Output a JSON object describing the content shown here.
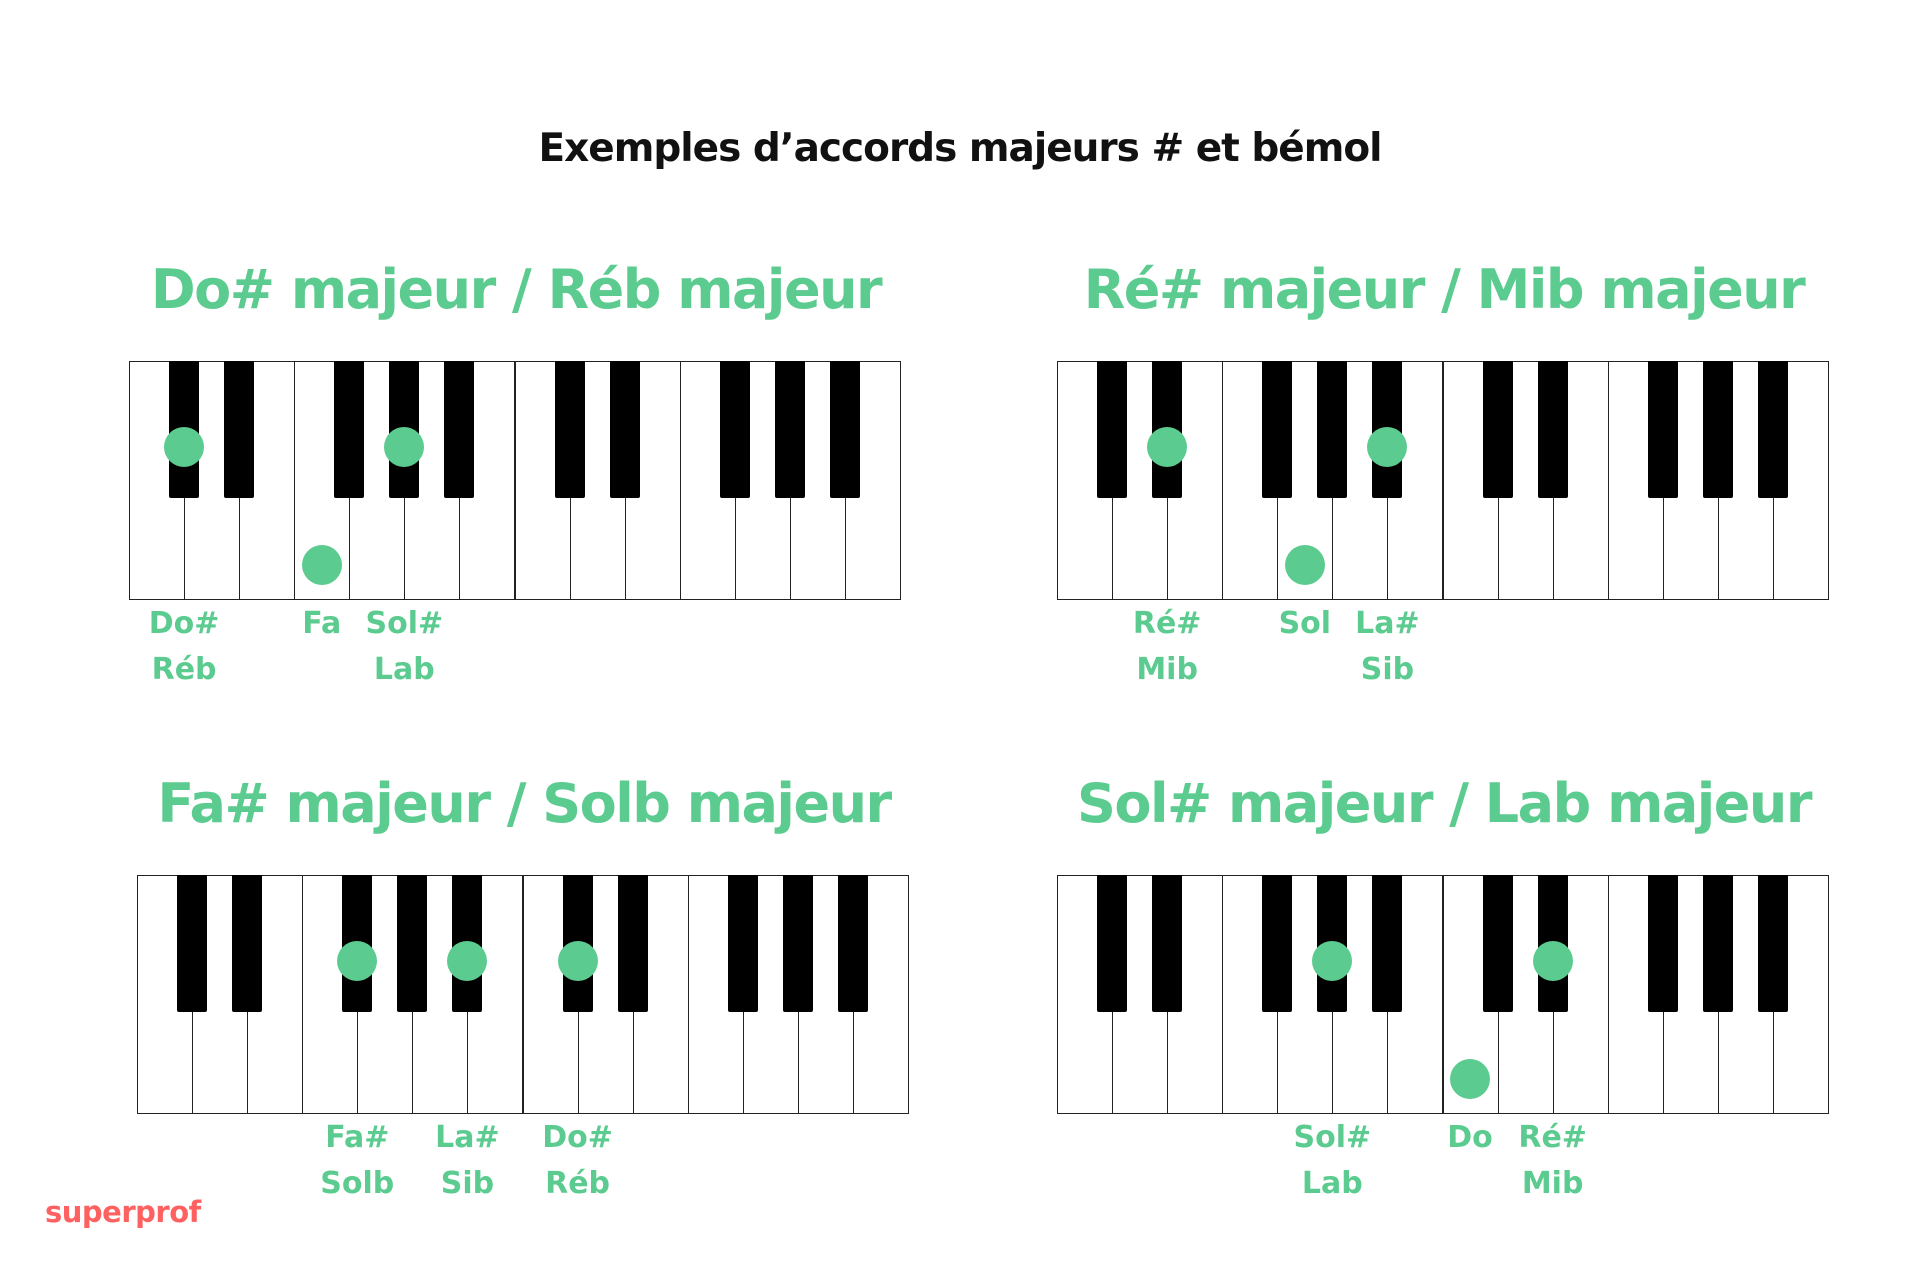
{
  "title": "Exemples d’accords majeurs # et bémol",
  "colors": {
    "accent": "#5bcb8f",
    "brand": "#ff6161",
    "black_key": "#000000",
    "white_key": "#ffffff"
  },
  "brand": "superprof",
  "keyboard": {
    "octaves": 2,
    "white_keys": [
      "C",
      "D",
      "E",
      "F",
      "G",
      "A",
      "B",
      "C",
      "D",
      "E",
      "F",
      "G",
      "A",
      "B"
    ]
  },
  "chords": [
    {
      "title": "Do# majeur / Réb majeur",
      "notes": [
        {
          "key": "C#",
          "octave": 1,
          "label": "Do#",
          "label_alt": "Réb"
        },
        {
          "key": "F",
          "octave": 1,
          "label": "Fa",
          "label_alt": ""
        },
        {
          "key": "G#",
          "octave": 1,
          "label": "Sol#",
          "label_alt": "Lab"
        }
      ]
    },
    {
      "title": "Ré# majeur / Mib majeur",
      "notes": [
        {
          "key": "D#",
          "octave": 1,
          "label": "Ré#",
          "label_alt": "Mib"
        },
        {
          "key": "G",
          "octave": 1,
          "label": "Sol",
          "label_alt": ""
        },
        {
          "key": "A#",
          "octave": 1,
          "label": "La#",
          "label_alt": "Sib"
        }
      ]
    },
    {
      "title": "Fa# majeur / Solb majeur",
      "notes": [
        {
          "key": "F#",
          "octave": 1,
          "label": "Fa#",
          "label_alt": "Solb"
        },
        {
          "key": "A#",
          "octave": 1,
          "label": "La#",
          "label_alt": "Sib"
        },
        {
          "key": "C#",
          "octave": 2,
          "label": "Do#",
          "label_alt": "Réb"
        }
      ]
    },
    {
      "title": "Sol# majeur / Lab majeur",
      "notes": [
        {
          "key": "G#",
          "octave": 1,
          "label": "Sol#",
          "label_alt": "Lab"
        },
        {
          "key": "C",
          "octave": 2,
          "label": "Do",
          "label_alt": ""
        },
        {
          "key": "D#",
          "octave": 2,
          "label": "Ré#",
          "label_alt": "Mib"
        }
      ]
    }
  ]
}
